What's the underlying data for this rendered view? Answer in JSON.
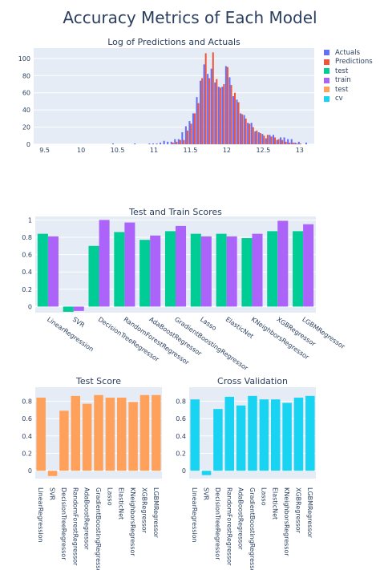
{
  "figure": {
    "title": "Accuracy Metrics of Each Model",
    "legend": [
      {
        "label": "Actuals",
        "color": "#636efa"
      },
      {
        "label": "Predictions",
        "color": "#ef553b"
      },
      {
        "label": "test",
        "color": "#00cc96"
      },
      {
        "label": "train",
        "color": "#ab63fa"
      },
      {
        "label": "test",
        "color": "#ffa15a"
      },
      {
        "label": "cv",
        "color": "#19d3f3"
      }
    ]
  },
  "chart_data": [
    {
      "type": "bar",
      "title": "Log of Predictions and Actuals",
      "xlabel": "",
      "ylabel": "",
      "xlim": [
        9.35,
        13.2
      ],
      "ylim": [
        0,
        112
      ],
      "x_ticks": [
        9.5,
        10,
        10.5,
        11,
        11.5,
        12,
        12.5,
        13
      ],
      "x_tick_labels": [
        "9.5",
        "10",
        "10.5",
        "11",
        "11.5",
        "12",
        "12.5",
        "13"
      ],
      "y_ticks": [
        0,
        20,
        40,
        60,
        80,
        100
      ],
      "y_tick_labels": [
        "0",
        "20",
        "40",
        "60",
        "80",
        "100"
      ],
      "bin_width": 0.05,
      "bins": [
        10.45,
        10.75,
        10.95,
        11.0,
        11.05,
        11.1,
        11.15,
        11.2,
        11.25,
        11.3,
        11.35,
        11.4,
        11.45,
        11.5,
        11.55,
        11.6,
        11.65,
        11.7,
        11.75,
        11.8,
        11.85,
        11.9,
        11.95,
        12.0,
        12.05,
        12.1,
        12.15,
        12.2,
        12.25,
        12.3,
        12.35,
        12.4,
        12.45,
        12.5,
        12.55,
        12.6,
        12.65,
        12.7,
        12.75,
        12.8,
        12.85,
        12.9,
        12.95,
        13.0,
        13.05,
        13.1
      ],
      "series": [
        {
          "name": "Actuals",
          "color": "#636efa",
          "values": [
            1,
            1,
            1,
            1,
            1,
            2,
            4,
            3,
            3,
            6,
            6,
            14,
            21,
            27,
            36,
            55,
            74,
            93,
            82,
            88,
            72,
            67,
            67,
            91,
            78,
            56,
            52,
            36,
            34,
            25,
            25,
            15,
            14,
            12,
            7,
            11,
            11,
            5,
            8,
            8,
            6,
            6,
            2,
            3,
            0,
            2
          ]
        },
        {
          "name": "Predictions",
          "color": "#ef553b",
          "values": [
            0,
            0,
            0,
            0,
            0,
            0,
            0,
            0,
            2,
            3,
            5,
            5,
            16,
            24,
            36,
            48,
            77,
            106,
            77,
            107,
            76,
            66,
            70,
            90,
            69,
            60,
            49,
            35,
            30,
            24,
            20,
            16,
            13,
            10,
            11,
            9,
            8,
            6,
            5,
            3,
            2,
            2,
            1,
            1,
            0,
            0
          ]
        }
      ]
    },
    {
      "type": "bar",
      "title": "Test and Train Scores",
      "xlabel": "",
      "ylabel": "",
      "ylim": [
        -0.07,
        1.04
      ],
      "y_ticks": [
        0,
        0.2,
        0.4,
        0.6,
        0.8,
        1
      ],
      "y_tick_labels": [
        "0",
        "0.2",
        "0.4",
        "0.6",
        "0.8",
        "1"
      ],
      "categories": [
        "LinearRegression",
        "SVR",
        "DecisionTreeRegressor",
        "RandomForestRegressor",
        "AdaBoostRegressor",
        "GradientBoostingRegressor",
        "Lasso",
        "ElasticNet",
        "KNeighborsRegressor",
        "XGBRegressor",
        "LGBMRegressor"
      ],
      "series": [
        {
          "name": "test",
          "color": "#00cc96",
          "values": [
            0.84,
            -0.06,
            0.7,
            0.86,
            0.77,
            0.87,
            0.84,
            0.84,
            0.79,
            0.87,
            0.87
          ]
        },
        {
          "name": "train",
          "color": "#ab63fa",
          "values": [
            0.81,
            -0.05,
            1.0,
            0.97,
            0.82,
            0.93,
            0.81,
            0.81,
            0.84,
            0.99,
            0.95
          ]
        }
      ]
    },
    {
      "type": "bar",
      "title": "Test Score",
      "xlabel": "",
      "ylabel": "",
      "ylim": [
        -0.09,
        0.96
      ],
      "y_ticks": [
        0,
        0.2,
        0.4,
        0.6,
        0.8
      ],
      "y_tick_labels": [
        "0",
        "0.2",
        "0.4",
        "0.6",
        "0.8"
      ],
      "categories": [
        "LinearRegression",
        "SVR",
        "DecisionTreeRegressor",
        "RandomForestRegressor",
        "AdaBoostRegressor",
        "GradientBoostingRegressor",
        "Lasso",
        "ElasticNet",
        "KNeighborsRegressor",
        "XGBRegressor",
        "LGBMRegressor"
      ],
      "series": [
        {
          "name": "test",
          "color": "#ffa15a",
          "values": [
            0.84,
            -0.06,
            0.69,
            0.86,
            0.77,
            0.87,
            0.84,
            0.84,
            0.79,
            0.87,
            0.87
          ]
        }
      ]
    },
    {
      "type": "bar",
      "title": "Cross Validation",
      "xlabel": "",
      "ylabel": "",
      "ylim": [
        -0.09,
        0.96
      ],
      "y_ticks": [
        0,
        0.2,
        0.4,
        0.6,
        0.8
      ],
      "y_tick_labels": [
        "0",
        "0.2",
        "0.4",
        "0.6",
        "0.8"
      ],
      "categories": [
        "LinearRegression",
        "SVR",
        "DecisionTreeRegressor",
        "RandomForestRegressor",
        "AdaBoostRegressor",
        "GradientBoostingRegressor",
        "Lasso",
        "ElasticNet",
        "KNeighborsRegressor",
        "XGBRegressor",
        "LGBMRegressor"
      ],
      "series": [
        {
          "name": "cv",
          "color": "#19d3f3",
          "values": [
            0.82,
            -0.05,
            0.71,
            0.85,
            0.75,
            0.86,
            0.82,
            0.82,
            0.78,
            0.84,
            0.86
          ]
        }
      ]
    }
  ]
}
